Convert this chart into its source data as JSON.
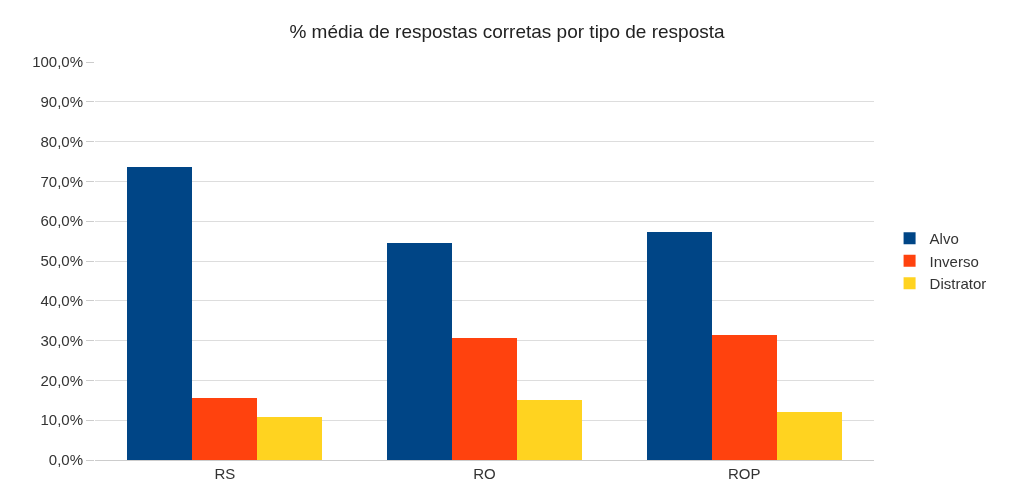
{
  "chart_data": {
    "type": "bar",
    "title": "% média de respostas corretas por tipo de resposta",
    "categories": [
      "RS",
      "RO",
      "ROP"
    ],
    "series": [
      {
        "name": "Alvo",
        "color": "#004586",
        "values": [
          73.5,
          54.6,
          57.2
        ]
      },
      {
        "name": "Inverso",
        "color": "#ff420e",
        "values": [
          15.7,
          30.7,
          31.4
        ]
      },
      {
        "name": "Distrator",
        "color": "#ffd320",
        "values": [
          10.8,
          15.2,
          12.1
        ]
      }
    ],
    "ylim": [
      0,
      100
    ],
    "yticks": [
      {
        "value": 0,
        "label": "0,0%"
      },
      {
        "value": 10,
        "label": "10,0%"
      },
      {
        "value": 20,
        "label": "20,0%"
      },
      {
        "value": 30,
        "label": "30,0%"
      },
      {
        "value": 40,
        "label": "40,0%"
      },
      {
        "value": 50,
        "label": "50,0%"
      },
      {
        "value": 60,
        "label": "60,0%"
      },
      {
        "value": 70,
        "label": "70,0%"
      },
      {
        "value": 80,
        "label": "80,0%"
      },
      {
        "value": 90,
        "label": "90,0%"
      },
      {
        "value": 100,
        "label": "100,0%"
      }
    ],
    "grid": "y",
    "legend": "right"
  }
}
